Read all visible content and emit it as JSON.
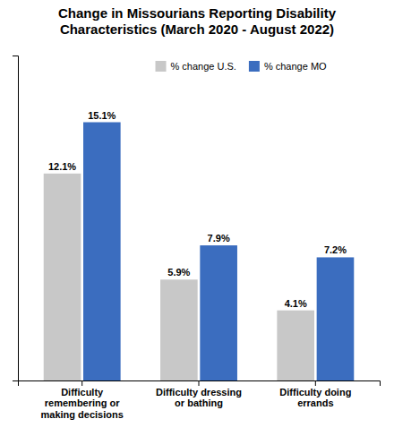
{
  "chart_data": {
    "type": "bar",
    "title": "Change in Missourians Reporting Disability\nCharacteristics (March 2020 - August 2022)",
    "categories": [
      "Difficulty\nremembering or\nmaking decisions",
      "Difficulty dressing\nor bathing",
      "Difficulty doing\nerrands"
    ],
    "series": [
      {
        "name": "% change U.S.",
        "color": "#c8c8c8",
        "values": [
          12.1,
          5.9,
          4.1
        ],
        "value_labels": [
          "12.1%",
          "5.9%",
          "4.1%"
        ]
      },
      {
        "name": "% change MO",
        "color": "#3b6dbf",
        "values": [
          15.1,
          7.9,
          7.2
        ],
        "value_labels": [
          "15.1%",
          "7.9%",
          "7.2%"
        ]
      }
    ],
    "ylim": [
      0,
      19
    ],
    "grid": false,
    "legend": "upper center",
    "data_labels": true,
    "tick_labels": "x"
  }
}
